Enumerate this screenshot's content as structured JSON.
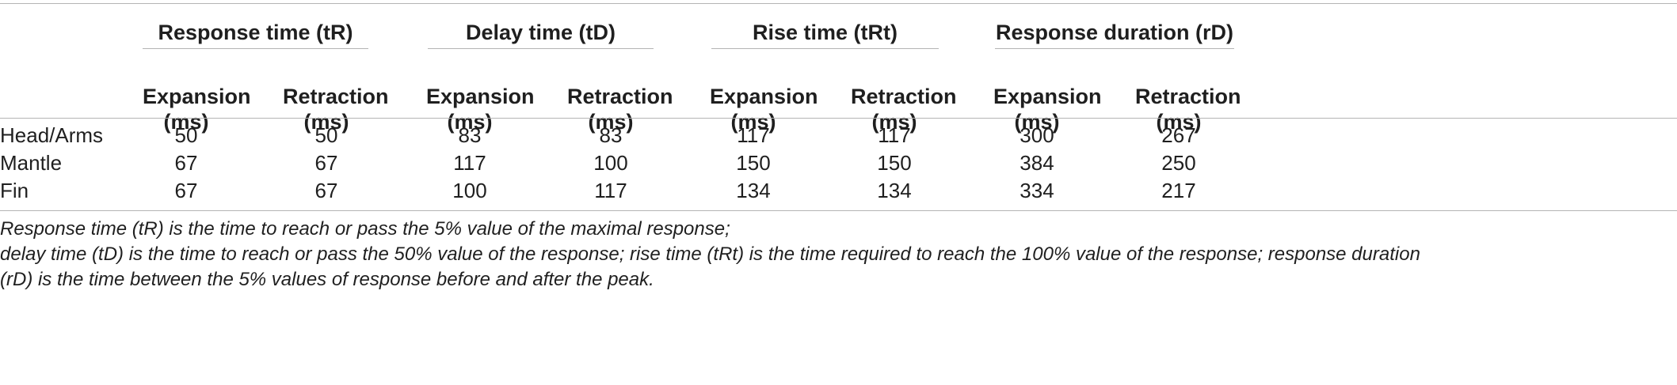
{
  "table": {
    "groups": [
      {
        "label": "Response time (tR)"
      },
      {
        "label": "Delay time (tD)"
      },
      {
        "label": "Rise time (tRt)"
      },
      {
        "label": "Response duration (rD)"
      }
    ],
    "subheaders": [
      {
        "line1": "Expansion",
        "line2": "(ms)"
      },
      {
        "line1": "Retraction",
        "line2": "(ms)"
      }
    ],
    "rows": [
      {
        "label": "Head/Arms",
        "values": [
          "50",
          "50",
          "83",
          "83",
          "117",
          "117",
          "300",
          "267"
        ]
      },
      {
        "label": "Mantle",
        "values": [
          "67",
          "67",
          "117",
          "100",
          "150",
          "150",
          "384",
          "250"
        ]
      },
      {
        "label": "Fin",
        "values": [
          "67",
          "67",
          "100",
          "117",
          "134",
          "134",
          "334",
          "217"
        ]
      }
    ]
  },
  "footnote": {
    "line1": "Response time (tR) is the time to reach or pass the 5% value of the maximal response;",
    "line2": "delay time (tD) is the time to reach or pass the 50% value of the response; rise time (tRt) is the time required to reach the 100% value of the response; response duration",
    "line3": "(rD) is the time between the 5% values of response before and after the peak."
  }
}
